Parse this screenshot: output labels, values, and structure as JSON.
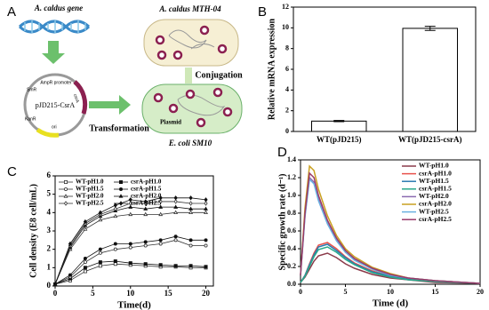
{
  "panel_labels": [
    "A",
    "B",
    "C",
    "D"
  ],
  "diagram": {
    "gene": "A. caldus gene",
    "plasmid": "pJD215-CsrA",
    "smr": "SmR",
    "promoter": "AmpR promoter",
    "csra": "csrA",
    "kanr": "KanR",
    "ori": "ori",
    "transformation": "Transformation",
    "acaldus": "A. caldus MTH-04",
    "conjugation": "Conjugation",
    "plasmid_label": "Plasmid",
    "ecoli": "E. coli SM10"
  },
  "chart_data": [
    {
      "type": "bar",
      "categories": [
        "WT(pJD215)",
        "WT(pJD215-csrA)"
      ],
      "values": [
        1.0,
        9.95
      ],
      "errors": [
        0.06,
        0.2
      ],
      "color": "#ffffff",
      "ylabel": "Relative mRNA expression",
      "ylim": [
        0,
        12
      ],
      "yticks": [
        0,
        2,
        4,
        6,
        8,
        10,
        12
      ]
    },
    {
      "type": "line",
      "xlabel": "Time(d)",
      "ylabel": "Cell density (E8 cell/mL)",
      "x": [
        0,
        2,
        4,
        6,
        8,
        10,
        12,
        14,
        16,
        18,
        20
      ],
      "xlim": [
        0,
        21
      ],
      "xticks": [
        0,
        5,
        10,
        15,
        20
      ],
      "ylim": [
        0,
        6
      ],
      "yticks": [
        0,
        1,
        2,
        3,
        4,
        5,
        6
      ],
      "legend": "upper left",
      "series": [
        {
          "name": "WT-pH1.0",
          "color": "#333333",
          "marker": "square",
          "filled": false,
          "values": [
            0.1,
            0.3,
            0.8,
            1.1,
            1.2,
            1.15,
            1.1,
            1.05,
            1.05,
            1.0,
            1.0
          ]
        },
        {
          "name": "csrA-pH1.0",
          "color": "#111111",
          "marker": "square",
          "filled": true,
          "values": [
            0.1,
            0.4,
            1.0,
            1.3,
            1.35,
            1.25,
            1.2,
            1.15,
            1.1,
            1.1,
            1.05
          ]
        },
        {
          "name": "WT-pH1.5",
          "color": "#333333",
          "marker": "circle",
          "filled": false,
          "values": [
            0.1,
            0.5,
            1.3,
            1.8,
            2.0,
            2.1,
            2.2,
            2.3,
            2.5,
            2.2,
            2.2
          ]
        },
        {
          "name": "csrA-pH1.5",
          "color": "#111111",
          "marker": "circle",
          "filled": true,
          "values": [
            0.1,
            0.6,
            1.5,
            2.0,
            2.3,
            2.3,
            2.4,
            2.5,
            2.7,
            2.5,
            2.5
          ]
        },
        {
          "name": "WT-pH2.0",
          "color": "#333333",
          "marker": "triangle",
          "filled": false,
          "values": [
            0.1,
            2.0,
            3.1,
            3.6,
            3.8,
            3.9,
            3.9,
            3.9,
            4.0,
            4.0,
            4.0
          ]
        },
        {
          "name": "csrA-pH2.0",
          "color": "#111111",
          "marker": "triangle",
          "filled": true,
          "values": [
            0.1,
            2.1,
            3.3,
            3.8,
            4.1,
            4.3,
            4.2,
            4.3,
            4.3,
            4.2,
            4.2
          ]
        },
        {
          "name": "WT-pH2.5",
          "color": "#333333",
          "marker": "diamond",
          "filled": false,
          "values": [
            0.1,
            2.2,
            3.4,
            3.9,
            4.2,
            4.5,
            4.5,
            4.6,
            4.6,
            4.5,
            4.5
          ]
        },
        {
          "name": "csrA-pH2.5",
          "color": "#111111",
          "marker": "diamond",
          "filled": true,
          "values": [
            0.1,
            2.3,
            3.5,
            4.0,
            4.4,
            4.7,
            4.6,
            4.8,
            4.8,
            4.8,
            4.7
          ]
        }
      ]
    },
    {
      "type": "line",
      "xlabel": "Time (d)",
      "ylabel": "Specific growth rate (d⁻¹)",
      "x": [
        0,
        0.5,
        1,
        1.5,
        2,
        3,
        4,
        5,
        6,
        8,
        10,
        12,
        15,
        20
      ],
      "xlim": [
        0,
        20
      ],
      "xticks": [
        0,
        5,
        10,
        15,
        20
      ],
      "ylim": [
        0,
        1.4
      ],
      "yticks": [
        {
          "value": 0,
          "label": "0.0"
        },
        0.2,
        0.4,
        0.6,
        0.8,
        {
          "value": 1,
          "label": "1.0"
        },
        1.2,
        1.4
      ],
      "legend": "upper right",
      "series": [
        {
          "name": "WT-pH1.0",
          "color": "#8b3a4a",
          "values": [
            0.02,
            0.08,
            0.17,
            0.26,
            0.32,
            0.35,
            0.3,
            0.23,
            0.18,
            0.11,
            0.07,
            0.05,
            0.02,
            0.01
          ]
        },
        {
          "name": "csrA-pH1.0",
          "color": "#e8504a",
          "values": [
            0.02,
            0.1,
            0.23,
            0.35,
            0.44,
            0.47,
            0.4,
            0.31,
            0.24,
            0.15,
            0.09,
            0.06,
            0.03,
            0.01
          ]
        },
        {
          "name": "WT-pH1.5",
          "color": "#2a7ab0",
          "values": [
            0.02,
            0.1,
            0.22,
            0.33,
            0.42,
            0.45,
            0.38,
            0.3,
            0.23,
            0.14,
            0.09,
            0.06,
            0.03,
            0.01
          ]
        },
        {
          "name": "csrA-pH1.5",
          "color": "#2aa88a",
          "values": [
            0.02,
            0.09,
            0.2,
            0.31,
            0.39,
            0.42,
            0.36,
            0.28,
            0.22,
            0.13,
            0.08,
            0.05,
            0.03,
            0.01
          ]
        },
        {
          "name": "WT-pH2.0",
          "color": "#8a6ab0",
          "values": [
            0.1,
            0.78,
            1.2,
            1.15,
            0.96,
            0.69,
            0.5,
            0.36,
            0.28,
            0.17,
            0.11,
            0.07,
            0.04,
            0.01
          ]
        },
        {
          "name": "csrA-pH2.0",
          "color": "#c9a020",
          "values": [
            0.1,
            0.86,
            1.33,
            1.28,
            1.07,
            0.77,
            0.55,
            0.4,
            0.31,
            0.19,
            0.12,
            0.07,
            0.04,
            0.01
          ]
        },
        {
          "name": "WT-pH2.5",
          "color": "#6ab0e0",
          "values": [
            0.1,
            0.76,
            1.18,
            1.13,
            0.94,
            0.68,
            0.49,
            0.36,
            0.27,
            0.17,
            0.1,
            0.07,
            0.04,
            0.01
          ]
        },
        {
          "name": "csrA-pH2.5",
          "color": "#9a3a6a",
          "values": [
            0.1,
            0.8,
            1.25,
            1.2,
            1.0,
            0.72,
            0.52,
            0.38,
            0.29,
            0.18,
            0.11,
            0.07,
            0.04,
            0.01
          ]
        }
      ]
    }
  ]
}
